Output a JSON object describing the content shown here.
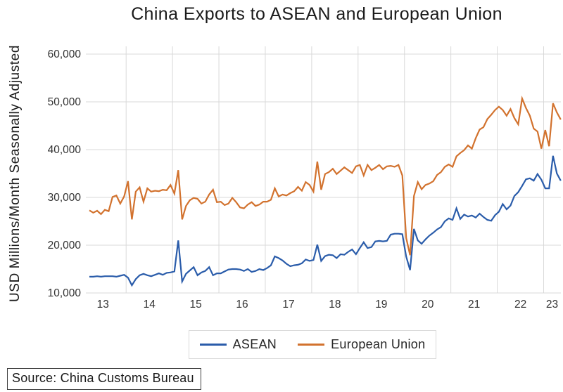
{
  "title": "China Exports to ASEAN and European Union",
  "y_axis": {
    "title": "USD Millions/Month Seasonally Adjusted",
    "ticks": [
      {
        "value": 10000,
        "label": "10,000"
      },
      {
        "value": 20000,
        "label": "20,000"
      },
      {
        "value": 30000,
        "label": "30,000"
      },
      {
        "value": 40000,
        "label": "40,000"
      },
      {
        "value": 50000,
        "label": "50,000"
      },
      {
        "value": 60000,
        "label": "60,000"
      }
    ]
  },
  "x_axis": {
    "labels": [
      "13",
      "14",
      "15",
      "16",
      "17",
      "18",
      "19",
      "20",
      "21",
      "22",
      "23"
    ]
  },
  "legend": {
    "items": [
      {
        "label": "ASEAN",
        "color": "#2A5CAA"
      },
      {
        "label": "European Union",
        "color": "#D2722E"
      }
    ]
  },
  "source": "Source: China Customs Bureau",
  "colors": {
    "asean_line": "#2A5CAA",
    "eu_line": "#D2722E",
    "gridline": "#D9D9D9",
    "text": "#262626"
  },
  "chart_data": {
    "type": "line",
    "title": "China Exports to ASEAN and European Union",
    "ylabel": "USD Millions/Month Seasonally Adjusted",
    "ylim": [
      10000,
      60000
    ],
    "grid": true,
    "legend_position": "bottom",
    "x_interval": "monthly",
    "x_start": "2013-03",
    "x_end": "2023-05",
    "x_tick_labels": [
      "13",
      "14",
      "15",
      "16",
      "17",
      "18",
      "19",
      "20",
      "21",
      "22",
      "23"
    ],
    "series": [
      {
        "name": "ASEAN",
        "color": "#2A5CAA",
        "values": [
          13400,
          13400,
          13500,
          13400,
          13500,
          13500,
          13500,
          13400,
          13600,
          13800,
          13200,
          11600,
          12900,
          13700,
          14000,
          13700,
          13500,
          13800,
          14100,
          13800,
          14200,
          14300,
          14500,
          21000,
          12400,
          14000,
          14700,
          15400,
          13700,
          14300,
          14600,
          15400,
          13700,
          14100,
          14100,
          14500,
          14900,
          15000,
          15000,
          14900,
          14600,
          15000,
          14400,
          14600,
          15000,
          14800,
          15200,
          15800,
          17650,
          17300,
          16800,
          16100,
          15600,
          15800,
          15900,
          16200,
          17000,
          16700,
          16900,
          20100,
          16700,
          17700,
          18000,
          17900,
          17300,
          18100,
          18000,
          18600,
          19100,
          18100,
          19400,
          20600,
          19400,
          19600,
          20800,
          20900,
          20800,
          20900,
          22200,
          22400,
          22400,
          22300,
          17600,
          14800,
          23400,
          21000,
          20300,
          21200,
          22000,
          22600,
          23300,
          23800,
          25000,
          25600,
          25300,
          27700,
          25500,
          26400,
          26000,
          26200,
          25800,
          26600,
          25900,
          25300,
          25100,
          26300,
          27000,
          28600,
          27500,
          28300,
          30300,
          31100,
          32400,
          33800,
          34000,
          33500,
          34900,
          33700,
          31900,
          31900,
          38700,
          35000,
          33500
        ]
      },
      {
        "name": "European Union",
        "color": "#D2722E",
        "values": [
          27300,
          26800,
          27200,
          26500,
          27400,
          27100,
          30100,
          30400,
          28700,
          30200,
          33400,
          25400,
          31200,
          32100,
          29100,
          31900,
          31200,
          31400,
          31300,
          31600,
          31500,
          32600,
          30800,
          35700,
          25400,
          28200,
          29400,
          29900,
          29700,
          28700,
          29100,
          30600,
          31600,
          29000,
          29100,
          28400,
          28700,
          29900,
          29000,
          27900,
          27700,
          28500,
          29000,
          28200,
          28500,
          29100,
          29100,
          29500,
          31900,
          30200,
          30600,
          30400,
          30900,
          31300,
          32200,
          31400,
          33200,
          32600,
          31200,
          37500,
          31600,
          34900,
          35300,
          36000,
          34900,
          35600,
          36300,
          35700,
          35100,
          36500,
          36800,
          34600,
          36800,
          35700,
          36200,
          36800,
          35900,
          36500,
          36600,
          36400,
          36800,
          34600,
          21500,
          17900,
          30300,
          33200,
          31700,
          32600,
          32900,
          33400,
          34700,
          35300,
          36400,
          36900,
          36400,
          38600,
          39300,
          39900,
          40900,
          40200,
          42400,
          44200,
          44700,
          46400,
          47300,
          48300,
          49000,
          48300,
          47100,
          48500,
          46600,
          45300,
          50700,
          48700,
          47100,
          44400,
          43800,
          40200,
          44100,
          40700,
          49700,
          47800,
          46300
        ]
      }
    ]
  }
}
